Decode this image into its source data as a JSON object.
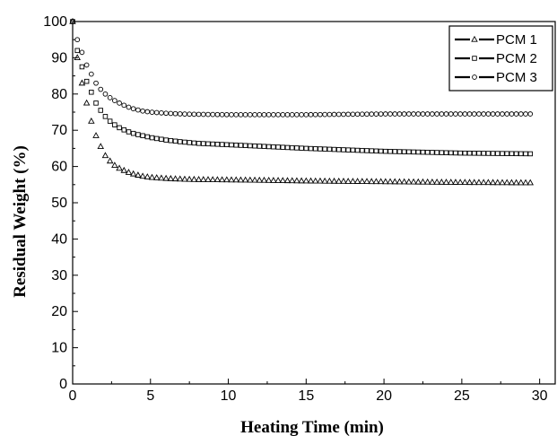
{
  "chart_data": {
    "type": "scatter",
    "title": "",
    "xlabel": "Heating Time (min)",
    "ylabel": "Residual Weight (%)",
    "xlim": [
      0,
      31
    ],
    "ylim": [
      0,
      100
    ],
    "x_ticks": [
      0,
      5,
      10,
      15,
      20,
      25,
      30
    ],
    "y_ticks": [
      0,
      10,
      20,
      30,
      40,
      50,
      60,
      70,
      80,
      90,
      100
    ],
    "grid": false,
    "legend_position": "top-right",
    "series": [
      {
        "name": "PCM 1",
        "marker": "triangle",
        "x": [
          0,
          0.3,
          0.6,
          0.9,
          1.2,
          1.5,
          1.8,
          2.1,
          2.4,
          2.7,
          3.0,
          3.5,
          4.0,
          4.5,
          5.0,
          6.0,
          7.0,
          8.0,
          10.0,
          12.0,
          15.0,
          20.0,
          25.0,
          29.5
        ],
        "y": [
          100,
          90,
          83,
          77.5,
          72.5,
          68.5,
          65.5,
          63,
          61.5,
          60.3,
          59.5,
          58.5,
          57.8,
          57.3,
          57,
          56.7,
          56.5,
          56.4,
          56.3,
          56.2,
          56,
          55.8,
          55.6,
          55.5
        ]
      },
      {
        "name": "PCM 2",
        "marker": "square",
        "x": [
          0,
          0.3,
          0.6,
          0.9,
          1.2,
          1.5,
          1.8,
          2.1,
          2.4,
          2.7,
          3.0,
          3.5,
          4.0,
          4.5,
          5.0,
          6.0,
          7.0,
          8.0,
          10.0,
          12.0,
          15.0,
          20.0,
          25.0,
          29.5
        ],
        "y": [
          100,
          92,
          87.5,
          83.5,
          80.5,
          77.5,
          75.5,
          73.8,
          72.5,
          71.5,
          70.7,
          69.7,
          69,
          68.5,
          68,
          67.3,
          66.8,
          66.4,
          66,
          65.6,
          65,
          64.2,
          63.7,
          63.5
        ]
      },
      {
        "name": "PCM 3",
        "marker": "circle",
        "x": [
          0,
          0.3,
          0.6,
          0.9,
          1.2,
          1.5,
          1.8,
          2.1,
          2.4,
          2.7,
          3.0,
          3.5,
          4.0,
          4.5,
          5.0,
          6.0,
          7.0,
          8.0,
          10.0,
          12.0,
          15.0,
          20.0,
          25.0,
          29.5
        ],
        "y": [
          100,
          95,
          91.5,
          88,
          85.5,
          83,
          81.3,
          80,
          79,
          78.2,
          77.5,
          76.5,
          75.8,
          75.3,
          75,
          74.7,
          74.5,
          74.4,
          74.3,
          74.3,
          74.3,
          74.5,
          74.5,
          74.5
        ]
      }
    ]
  }
}
